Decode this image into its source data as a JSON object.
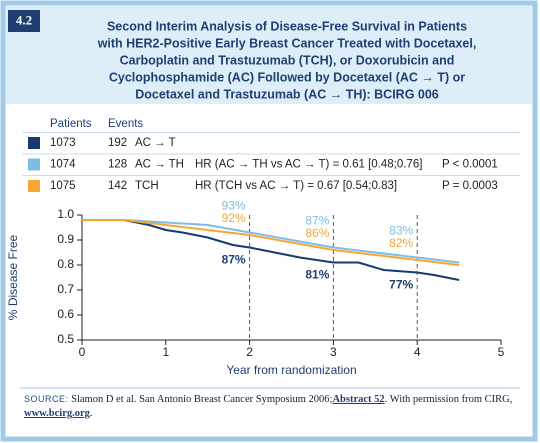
{
  "badge": "4.2",
  "chart_data": {
    "type": "line",
    "title": [
      "Second Interim Analysis of Disease-Free Survival in Patients",
      "with HER2-Positive Early Breast Cancer Treated with Docetaxel,",
      "Carboplatin and Trastuzumab (TCH), or Doxorubicin and",
      "Cyclophosphamide (AC) Followed by Docetaxel (AC → T) or",
      "Docetaxel and Trastuzumab (AC → TH): BCIRG 006"
    ],
    "legend_headers": [
      "Patients",
      "Events"
    ],
    "series": [
      {
        "name": "AC → T",
        "color": "#173a6e",
        "patients": 1073,
        "events": 192,
        "x": [
          0,
          0.5,
          0.8,
          1.0,
          1.2,
          1.5,
          1.8,
          2.0,
          2.3,
          2.6,
          3.0,
          3.3,
          3.6,
          4.0,
          4.2,
          4.5
        ],
        "values": [
          0.98,
          0.98,
          0.96,
          0.94,
          0.93,
          0.91,
          0.88,
          0.87,
          0.85,
          0.83,
          0.81,
          0.81,
          0.78,
          0.77,
          0.76,
          0.74
        ]
      },
      {
        "name": "AC → TH",
        "color": "#7dbde4",
        "patients": 1074,
        "events": 128,
        "hr": "HR (AC → TH vs AC → T) = 0.61 [0.48;0.76]",
        "p": "P < 0.0001",
        "x": [
          0,
          0.5,
          1.0,
          1.5,
          2.0,
          2.5,
          3.0,
          3.5,
          4.0,
          4.5
        ],
        "values": [
          0.98,
          0.98,
          0.97,
          0.96,
          0.93,
          0.9,
          0.87,
          0.85,
          0.83,
          0.81
        ]
      },
      {
        "name": "TCH",
        "color": "#f5a733",
        "patients": 1075,
        "events": 142,
        "hr": "HR (TCH vs AC → T) = 0.67 [0.54;0.83]",
        "p": "P = 0.0003",
        "x": [
          0,
          0.5,
          1.0,
          1.5,
          2.0,
          2.5,
          3.0,
          3.5,
          4.0,
          4.5
        ],
        "values": [
          0.98,
          0.98,
          0.96,
          0.94,
          0.92,
          0.89,
          0.86,
          0.84,
          0.82,
          0.8
        ]
      }
    ],
    "milestones": [
      {
        "x": 2,
        "labels": [
          {
            "series": 1,
            "value": 0.93,
            "label": "93%"
          },
          {
            "series": 2,
            "value": 0.92,
            "label": "92%"
          },
          {
            "series": 0,
            "value": 0.87,
            "label": "87%"
          }
        ]
      },
      {
        "x": 3,
        "labels": [
          {
            "series": 1,
            "value": 0.87,
            "label": "87%"
          },
          {
            "series": 2,
            "value": 0.86,
            "label": "86%"
          },
          {
            "series": 0,
            "value": 0.81,
            "label": "81%"
          }
        ]
      },
      {
        "x": 4,
        "labels": [
          {
            "series": 1,
            "value": 0.83,
            "label": "83%"
          },
          {
            "series": 2,
            "value": 0.82,
            "label": "82%"
          },
          {
            "series": 0,
            "value": 0.77,
            "label": "77%"
          }
        ]
      }
    ],
    "y_label": "% Disease Free",
    "x_label": "Year from randomization",
    "xlim": [
      0,
      5
    ],
    "xticks": [
      0,
      1,
      2,
      3,
      4,
      5
    ],
    "ylim": [
      0.5,
      1
    ],
    "yticks": [
      0.5,
      0.6,
      0.7,
      0.8,
      0.9,
      {
        "value": 1,
        "label": "1.0"
      }
    ]
  },
  "source": {
    "label": "SOURCE:",
    "text": "Slamon D et al. San Antonio Breast Cancer Symposium 2006;",
    "abstract": "Abstract 52",
    "text2": ". With permission from CIRG,",
    "link": "www.bcirg.org",
    "end": "."
  }
}
